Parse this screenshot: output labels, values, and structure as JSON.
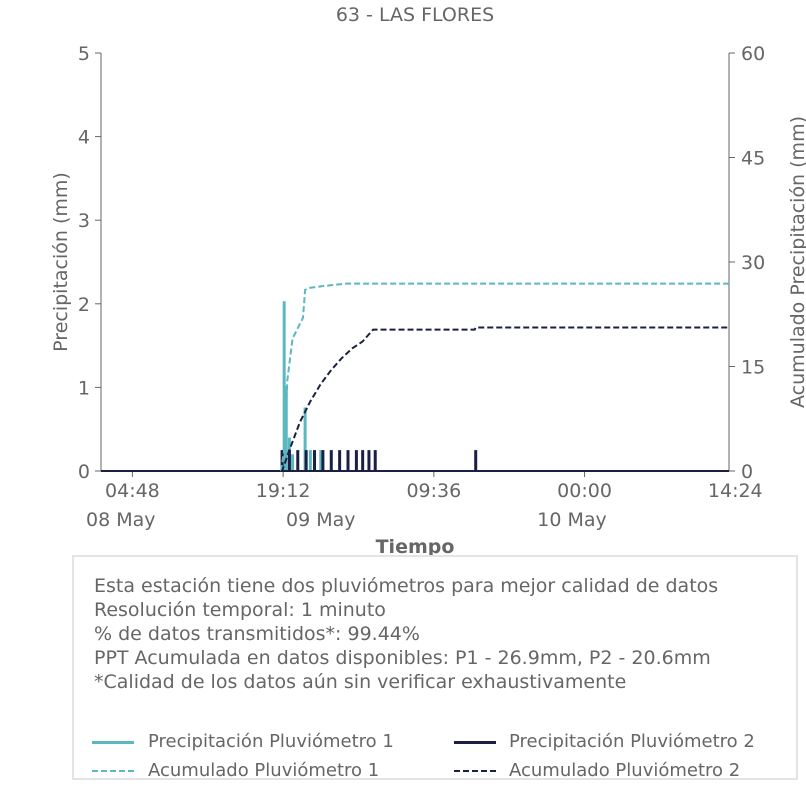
{
  "chart_data": {
    "type": "line",
    "title": "63 - LAS FLORES",
    "xlabel": "Tiempo",
    "ylabel_left": "Precipitación (mm)",
    "ylabel_right": "Acumulado Precipitación (mm)",
    "ylim_left": [
      0,
      5
    ],
    "ylim_right": [
      0,
      60
    ],
    "yticks_left": [
      "0",
      "1",
      "2",
      "3",
      "4",
      "5"
    ],
    "yticks_right": [
      "0",
      "15",
      "30",
      "45",
      "60"
    ],
    "xlim_hours": [
      0,
      60
    ],
    "x_ticks": [
      {
        "hour": 3.0,
        "time": "04:48",
        "date": "08 May"
      },
      {
        "hour": 17.4,
        "time": "19:12",
        "date": ""
      },
      {
        "hour": 31.8,
        "time": "09:36",
        "date": "09 May"
      },
      {
        "hour": 46.2,
        "time": "00:00",
        "date": "10 May"
      },
      {
        "hour": 60.6,
        "time": "14:24",
        "date": ""
      }
    ],
    "date_labels": [
      {
        "hour": -3.0,
        "label": "08 May"
      },
      {
        "hour": 21.0,
        "label": "09 May"
      },
      {
        "hour": 45.0,
        "label": "10 May"
      }
    ],
    "grid": false,
    "series": [
      {
        "name": "Precipitación Pluviómetro 1",
        "axis": "left",
        "style": "solid",
        "color": "#5bb8c1",
        "x": [
          17.5,
          17.7,
          18.0,
          18.3,
          19.5,
          20.0,
          21.0
        ],
        "values": [
          2.03,
          1.02,
          0.4,
          0.2,
          0.76,
          0.25,
          0.25
        ]
      },
      {
        "name": "Precipitación Pluviómetro 2",
        "axis": "left",
        "style": "solid",
        "color": "#1b1f44",
        "x": [
          17.3,
          18.0,
          18.8,
          19.6,
          20.4,
          21.2,
          22.0,
          22.8,
          23.6,
          24.4,
          25.0,
          25.6,
          26.2,
          35.8
        ],
        "values": [
          0.25,
          0.25,
          0.25,
          0.25,
          0.25,
          0.25,
          0.25,
          0.25,
          0.25,
          0.25,
          0.25,
          0.25,
          0.25,
          0.25
        ]
      },
      {
        "name": "Acumulado Pluviómetro 1",
        "axis": "right",
        "style": "dashed",
        "color": "#5bb8c1",
        "x": [
          0,
          17.2,
          17.5,
          17.8,
          18.3,
          19.3,
          19.5,
          20.0,
          21.5,
          23.5,
          60
        ],
        "values": [
          0,
          0,
          3,
          13,
          19,
          22,
          26,
          26.3,
          26.6,
          26.9,
          26.9
        ]
      },
      {
        "name": "Acumulado Pluviómetro 2",
        "axis": "right",
        "style": "dashed",
        "color": "#1b1f44",
        "x": [
          0,
          17.3,
          18.0,
          19.0,
          20.0,
          21.0,
          22.0,
          23.0,
          24.0,
          25.0,
          26.0,
          35.7,
          35.8,
          60
        ],
        "values": [
          0,
          0,
          3,
          7,
          10,
          12.5,
          14.5,
          16.2,
          17.6,
          18.6,
          20.3,
          20.3,
          20.6,
          20.6
        ]
      }
    ],
    "legend_position": "bottom"
  },
  "info": {
    "lines": [
      "Esta estación tiene dos pluviómetros para mejor calidad de datos",
      "Resolución temporal: 1 minuto",
      "% de datos transmitidos*: 99.44%",
      "PPT Acumulada en datos disponibles: P1 - 26.9mm, P2 - 20.6mm",
      "*Calidad de los datos aún sin verificar exhaustivamente"
    ]
  },
  "legend": {
    "items": [
      {
        "label": "Precipitación Pluviómetro 1",
        "color": "#5bb8c1",
        "style": "solid"
      },
      {
        "label": "Precipitación Pluviómetro 2",
        "color": "#1b1f44",
        "style": "solid"
      },
      {
        "label": "Acumulado Pluviómetro 1",
        "color": "#5bb8c1",
        "style": "dashed"
      },
      {
        "label": "Acumulado Pluviómetro 2",
        "color": "#1b1f44",
        "style": "dashed"
      }
    ]
  }
}
